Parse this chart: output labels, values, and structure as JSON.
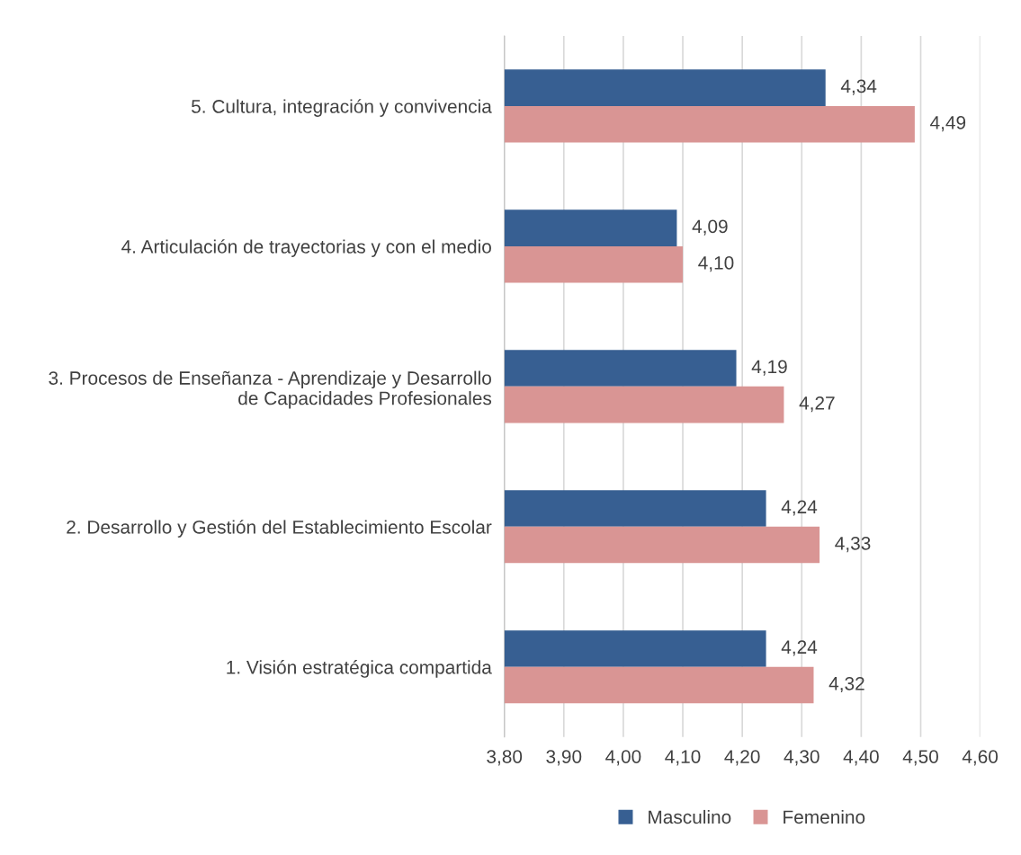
{
  "chart_data": {
    "type": "bar",
    "orientation": "horizontal",
    "categories": [
      "5. Cultura, integración y convivencia",
      "4. Articulación de trayectorias y con el medio",
      "3. Procesos de Enseñanza - Aprendizaje y Desarrollo\nde Capacidades Profesionales",
      "2. Desarrollo y Gestión del Establecimiento Escolar",
      "1. Visión estratégica compartida"
    ],
    "series": [
      {
        "name": "Masculino",
        "color": "#375f92",
        "values": [
          4.34,
          4.09,
          4.19,
          4.24,
          4.24
        ],
        "value_labels": [
          "4,34",
          "4,09",
          "4,19",
          "4,24",
          "4,24"
        ]
      },
      {
        "name": "Femenino",
        "color": "#d99594",
        "values": [
          4.49,
          4.1,
          4.27,
          4.33,
          4.32
        ],
        "value_labels": [
          "4,49",
          "4,10",
          "4,27",
          "4,33",
          "4,32"
        ]
      }
    ],
    "xlim": [
      3.8,
      4.6
    ],
    "xticks": [
      {
        "value": 3.8,
        "label": "3,80"
      },
      {
        "value": 3.9,
        "label": "3,90"
      },
      {
        "value": 4.0,
        "label": "4,00"
      },
      {
        "value": 4.1,
        "label": "4,10"
      },
      {
        "value": 4.2,
        "label": "4,20"
      },
      {
        "value": 4.3,
        "label": "4,30"
      },
      {
        "value": 4.4,
        "label": "4,40"
      },
      {
        "value": 4.5,
        "label": "4,50"
      },
      {
        "value": 4.6,
        "label": "4,60"
      }
    ],
    "grid": "x",
    "legend": "bottom"
  }
}
